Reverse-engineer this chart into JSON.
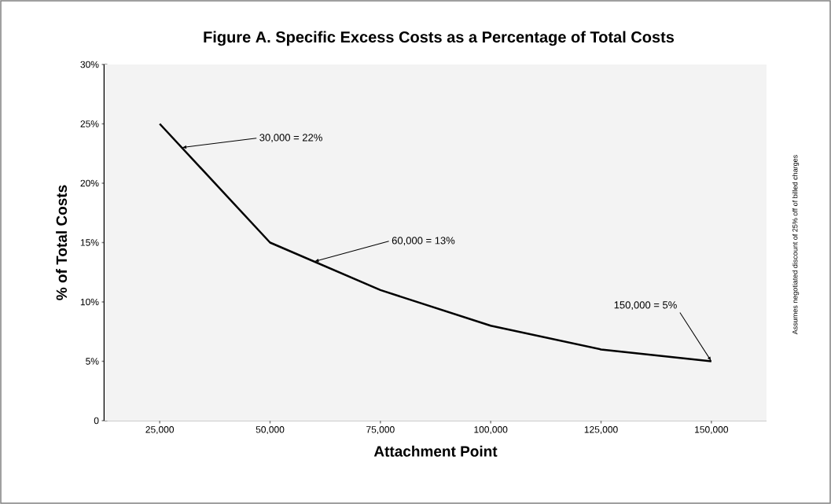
{
  "chart_data": {
    "type": "line",
    "title": "Figure A. Specific Excess Costs as a Percentage of Total Costs",
    "xlabel": "Attachment Point",
    "ylabel": "% of Total Costs",
    "x": [
      25000,
      50000,
      75000,
      100000,
      125000,
      150000
    ],
    "series": [
      {
        "color": "#000000",
        "values": [
          25,
          15,
          11,
          8,
          6,
          5
        ]
      }
    ],
    "xlim": [
      12500,
      162500
    ],
    "xticks": [
      {
        "value": 25000,
        "label": "25,000"
      },
      {
        "value": 50000,
        "label": "50,000"
      },
      {
        "value": 75000,
        "label": "75,000"
      },
      {
        "value": 100000,
        "label": "100,000"
      },
      {
        "value": 125000,
        "label": "125,000"
      },
      {
        "value": 150000,
        "label": "150,000"
      }
    ],
    "ylim": [
      0,
      30
    ],
    "yticks": [
      0,
      {
        "value": 5,
        "label": "5%"
      },
      {
        "value": 10,
        "label": "10%"
      },
      {
        "value": 15,
        "label": "15%"
      },
      {
        "value": 20,
        "label": "20%"
      },
      {
        "value": 25,
        "label": "25%"
      },
      {
        "value": 30,
        "label": "30%"
      }
    ],
    "annotations": [
      {
        "text": "30,000 = 22%",
        "x": 30000,
        "y": 23
      },
      {
        "text": "60,000 = 13%",
        "x": 60000,
        "y": 13.4
      },
      {
        "text": "150,000 = 5%",
        "x": 150000,
        "y": 5
      },
      "Assumes negotiated discount of 25% off of billed charges"
    ],
    "grid": false,
    "marker": "none",
    "line_style": "solid"
  }
}
